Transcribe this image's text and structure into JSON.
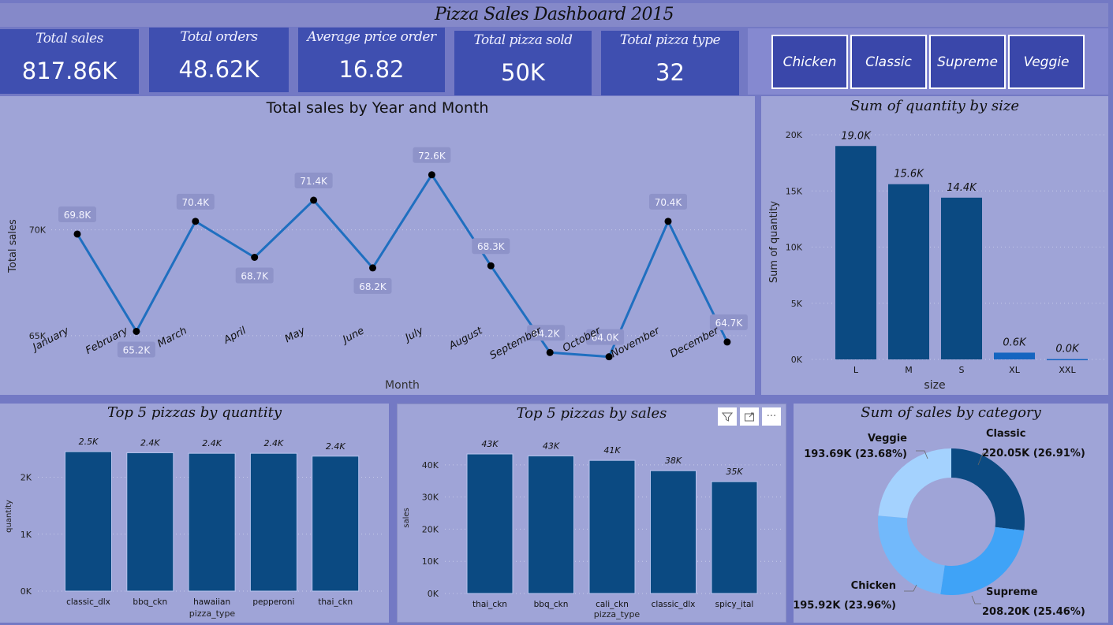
{
  "header": {
    "title": "Pizza Sales Dashboard 2015"
  },
  "kpis": [
    {
      "label": "Total sales",
      "value": "817.86K"
    },
    {
      "label": "Total orders",
      "value": "48.62K"
    },
    {
      "label": "Average price order",
      "value": "16.82"
    },
    {
      "label": "Total pizza sold",
      "value": "50K"
    },
    {
      "label": "Total pizza type",
      "value": "32"
    }
  ],
  "slicer": {
    "options": [
      "Chicken",
      "Classic",
      "Supreme",
      "Veggie"
    ]
  },
  "colors": {
    "bar": "#0b4a82",
    "line": "#1f6fc0",
    "label_box": "#8e93c9",
    "pie": [
      "#0b4a82",
      "#3fa3f7",
      "#72b9fb",
      "#a4d2fe"
    ]
  },
  "visual_tools": {
    "filter_icon": "filter-icon",
    "focus_icon": "focus-mode-icon",
    "more_icon": "more-options-icon",
    "more_label": "···"
  },
  "chart_data": [
    {
      "id": "sales-by-month",
      "type": "line",
      "title": "Total sales by Year and Month",
      "xlabel": "Month",
      "ylabel": "Total sales",
      "categories": [
        "January",
        "February",
        "March",
        "April",
        "May",
        "June",
        "July",
        "August",
        "September",
        "October",
        "November",
        "December"
      ],
      "values": [
        69.8,
        65.2,
        70.4,
        68.7,
        71.4,
        68.2,
        72.6,
        68.3,
        64.2,
        64.0,
        70.4,
        64.7
      ],
      "value_labels": [
        "69.8K",
        "65.2K",
        "70.4K",
        "68.7K",
        "71.4K",
        "68.2K",
        "72.6K",
        "68.3K",
        "64.2K",
        "64.0K",
        "70.4K",
        "64.7K"
      ],
      "yticks": [
        {
          "v": 65,
          "label": "65K"
        },
        {
          "v": 70,
          "label": "70K"
        }
      ],
      "ylim": [
        62.2,
        75.2
      ],
      "grid": true
    },
    {
      "id": "quantity-by-size",
      "type": "bar",
      "title": "Sum of quantity by size",
      "xlabel": "size",
      "ylabel": "Sum of quantity",
      "categories": [
        "L",
        "M",
        "S",
        "XL",
        "XXL"
      ],
      "values": [
        19.0,
        15.6,
        14.4,
        0.6,
        0.03
      ],
      "value_labels": [
        "19.0K",
        "15.6K",
        "14.4K",
        "0.6K",
        "0.0K"
      ],
      "yticks": [
        {
          "v": 0,
          "label": "0K"
        },
        {
          "v": 5,
          "label": "5K"
        },
        {
          "v": 10,
          "label": "10K"
        },
        {
          "v": 15,
          "label": "15K"
        },
        {
          "v": 20,
          "label": "20K"
        }
      ],
      "ylim": [
        0,
        20
      ],
      "grid": true
    },
    {
      "id": "top5-quantity",
      "type": "bar",
      "title": "Top 5 pizzas by quantity",
      "xlabel": "pizza_type",
      "ylabel": "quantity",
      "categories": [
        "classic_dlx",
        "bbq_ckn",
        "hawaiian",
        "pepperoni",
        "thai_ckn"
      ],
      "values": [
        2.45,
        2.43,
        2.42,
        2.42,
        2.37
      ],
      "value_labels": [
        "2.5K",
        "2.4K",
        "2.4K",
        "2.4K",
        "2.4K"
      ],
      "yticks": [
        {
          "v": 0,
          "label": "0K"
        },
        {
          "v": 1,
          "label": "1K"
        },
        {
          "v": 2,
          "label": "2K"
        }
      ],
      "ylim": [
        0,
        2.45
      ],
      "grid": true
    },
    {
      "id": "top5-sales",
      "type": "bar",
      "title": "Top 5 pizzas by sales",
      "xlabel": "pizza_type",
      "ylabel": "sales",
      "categories": [
        "thai_ckn",
        "bbq_ckn",
        "cali_ckn",
        "classic_dlx",
        "spicy_ital"
      ],
      "values": [
        43.4,
        42.8,
        41.4,
        38.2,
        34.8
      ],
      "value_labels": [
        "43K",
        "43K",
        "41K",
        "38K",
        "35K"
      ],
      "yticks": [
        {
          "v": 0,
          "label": "0K"
        },
        {
          "v": 10,
          "label": "10K"
        },
        {
          "v": 20,
          "label": "20K"
        },
        {
          "v": 30,
          "label": "30K"
        },
        {
          "v": 40,
          "label": "40K"
        }
      ],
      "ylim": [
        0,
        43.4
      ],
      "grid": true
    },
    {
      "id": "sales-by-category",
      "type": "pie",
      "donut": true,
      "title": "Sum of sales by category",
      "categories": [
        "Classic",
        "Supreme",
        "Chicken",
        "Veggie"
      ],
      "values": [
        220.05,
        208.2,
        195.92,
        193.69
      ],
      "value_labels": [
        "220.05K (26.91%)",
        "208.20K (25.46%)",
        "195.92K (23.96%)",
        "193.69K (23.68%)"
      ],
      "percent": [
        26.91,
        25.46,
        23.96,
        23.68
      ]
    }
  ]
}
